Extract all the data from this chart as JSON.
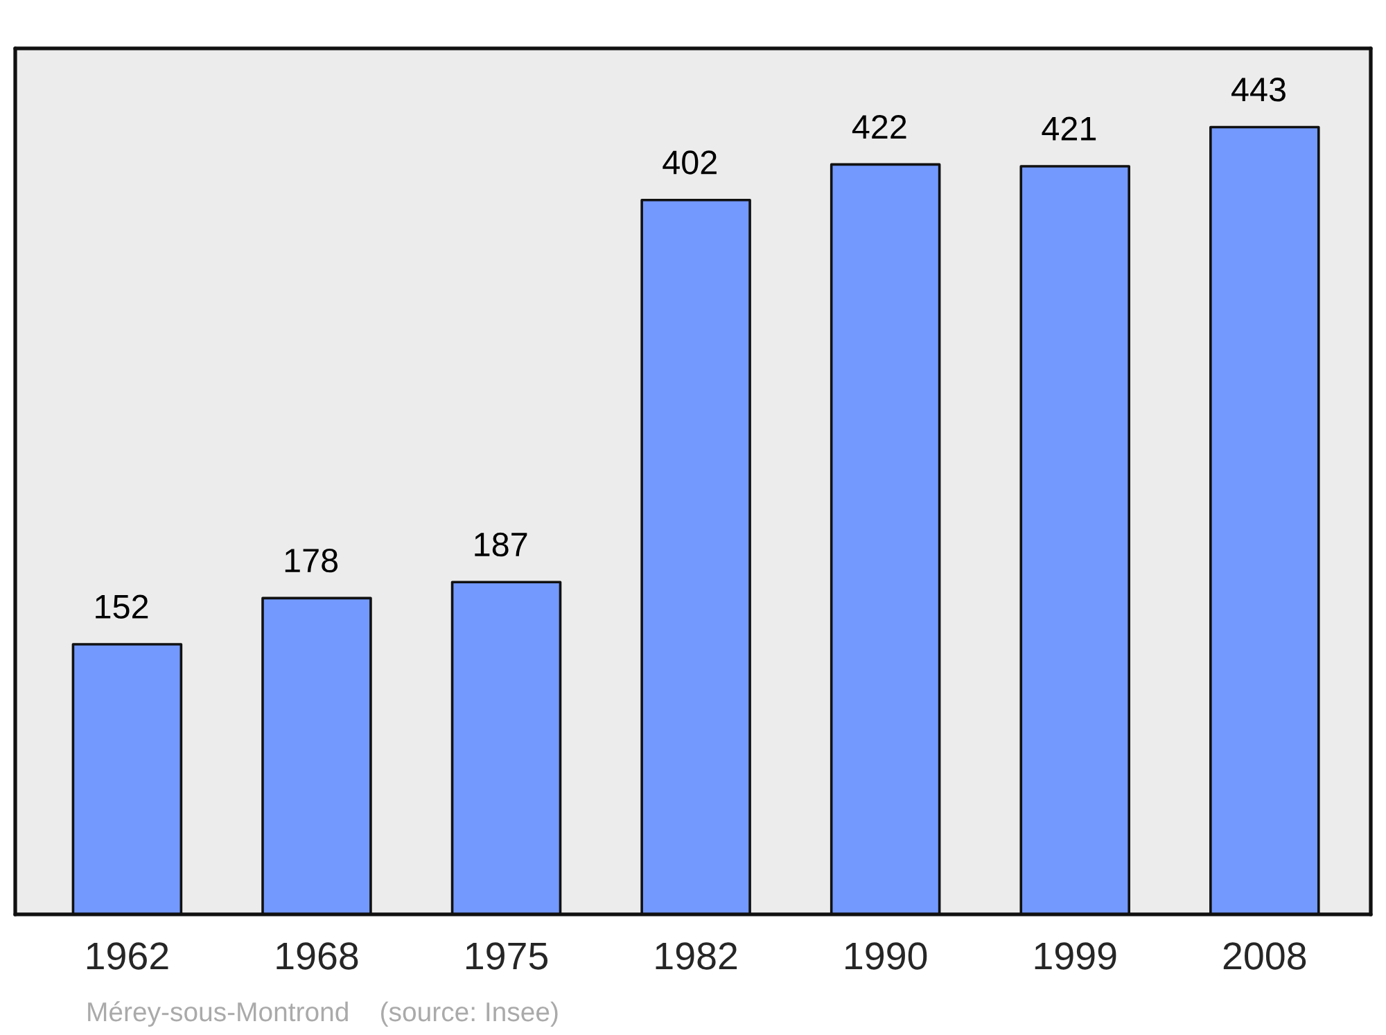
{
  "chart_data": {
    "type": "bar",
    "categories": [
      "1962",
      "1968",
      "1975",
      "1982",
      "1990",
      "1999",
      "2008"
    ],
    "values": [
      152,
      178,
      187,
      402,
      422,
      421,
      443
    ],
    "color": "#7399ff",
    "data_labels": true,
    "tick_labels": "x",
    "annotations": [
      "Mérey-sous-Montrond    (source: Insee)"
    ]
  }
}
